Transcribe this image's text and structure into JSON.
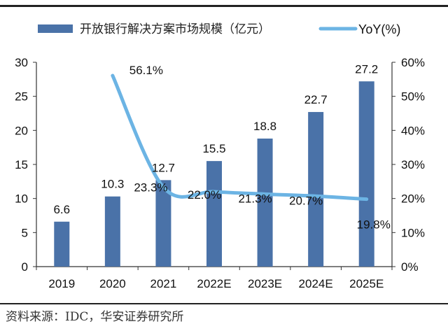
{
  "chart_data": {
    "type": "bar+line",
    "categories": [
      "2019",
      "2020",
      "2021",
      "2022E",
      "2023E",
      "2024E",
      "2025E"
    ],
    "series": [
      {
        "name": "开放银行解决方案市场规模（亿元）",
        "type": "bar",
        "axis": "left",
        "color": "#4a72a8",
        "values": [
          6.6,
          10.3,
          12.7,
          15.5,
          18.8,
          22.7,
          27.2
        ],
        "labels": [
          "6.6",
          "10.3",
          "12.7",
          "15.5",
          "18.8",
          "22.7",
          "27.2"
        ]
      },
      {
        "name": "YoY(%)",
        "type": "line",
        "axis": "right",
        "color": "#6cb4e4",
        "values": [
          null,
          56.1,
          23.3,
          22.0,
          21.3,
          20.7,
          19.8
        ],
        "labels": [
          "",
          "56.1%",
          "23.3%",
          "22.0%",
          "21.3%",
          "20.7%",
          "19.8%"
        ]
      }
    ],
    "left_axis": {
      "ylim": [
        0,
        30
      ],
      "ticks": [
        "0",
        "5",
        "10",
        "15",
        "20",
        "25",
        "30"
      ]
    },
    "right_axis": {
      "ylim": [
        0,
        60
      ],
      "ticks": [
        "0%",
        "10%",
        "20%",
        "30%",
        "40%",
        "50%",
        "60%"
      ]
    },
    "legend": {
      "position": "top",
      "items": [
        "开放银行解决方案市场规模（亿元）",
        "YoY(%)"
      ]
    },
    "grid": false
  },
  "source": "资料来源：IDC，华安证券研究所"
}
